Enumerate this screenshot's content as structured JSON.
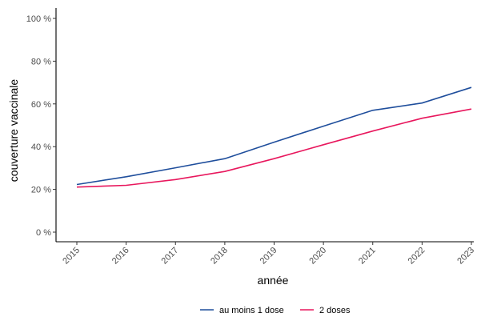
{
  "chart_data": {
    "type": "line",
    "title": "",
    "xlabel": "année",
    "ylabel": "couverture vaccinale",
    "x": [
      2015,
      2016,
      2017,
      2018,
      2019,
      2020,
      2021,
      2022,
      2023
    ],
    "xticks": [
      "2015",
      "2016",
      "2017",
      "2018",
      "2019",
      "2020",
      "2021",
      "2022",
      "2023"
    ],
    "ylim": [
      0,
      100
    ],
    "yticks": [
      0,
      20,
      40,
      60,
      80,
      100
    ],
    "ytick_labels": [
      "0 %",
      "20 %",
      "40 %",
      "60 %",
      "80 %",
      "100 %"
    ],
    "grid": false,
    "legend_position": "bottom",
    "series": [
      {
        "name": "au moins 1 dose",
        "color": "#1f4e9c",
        "values": [
          22.3,
          25.9,
          30.1,
          34.4,
          42.1,
          49.6,
          57.0,
          60.4,
          67.7
        ]
      },
      {
        "name": "2 doses",
        "color": "#e8175d",
        "values": [
          21.1,
          21.9,
          24.6,
          28.4,
          34.4,
          40.9,
          47.3,
          53.3,
          57.6
        ]
      }
    ]
  }
}
